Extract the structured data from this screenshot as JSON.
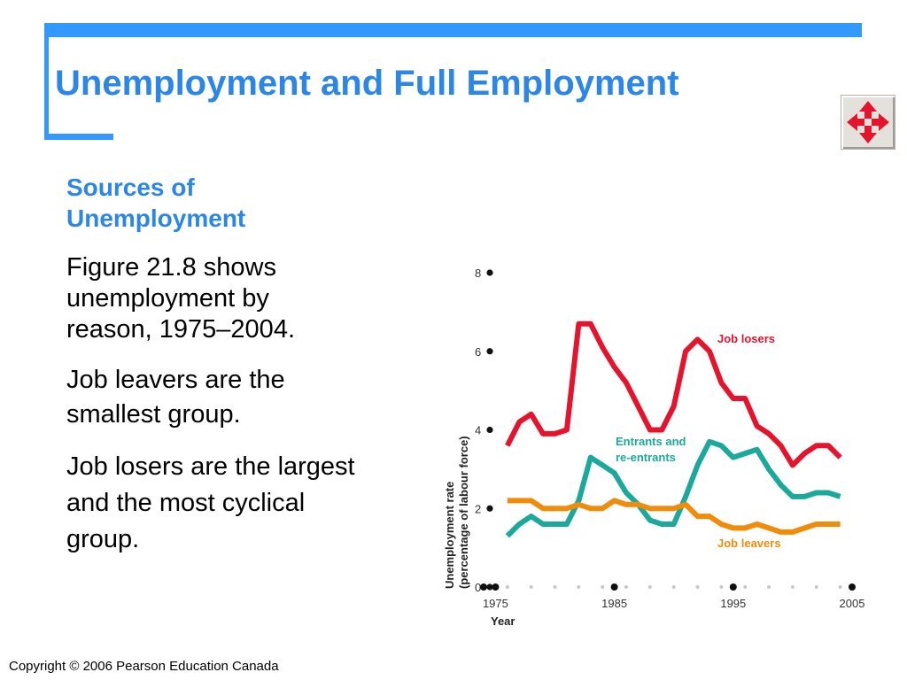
{
  "slide": {
    "title": "Unemployment and Full Employment",
    "subheading": "Sources of Unemployment",
    "paragraphs": [
      "Figure 21.8 shows unemployment by reason, 1975–2004.",
      "Job leavers are the smallest group.",
      "Job losers are the largest and the most cyclical group."
    ],
    "footer": "Copyright © 2006 Pearson Education Canada",
    "nav_icon": "four-way-arrow-icon",
    "colors": {
      "accent": "#3399ff",
      "title": "#2b86e8",
      "nav_arrow": "#e5132b"
    }
  },
  "chart_data": {
    "type": "line",
    "xlabel": "Year",
    "ylabel_line1": "Unemployment rate",
    "ylabel_line2": "(percentage of labour force)",
    "xlim": [
      1974,
      2005
    ],
    "ylim": [
      0,
      8
    ],
    "x_ticks": [
      1975,
      1985,
      1995,
      2005
    ],
    "y_ticks": [
      0,
      2,
      4,
      6,
      8
    ],
    "grid": false,
    "series": [
      {
        "name": "Job losers",
        "label_line1": "Job losers",
        "color": "#e5132b",
        "x": [
          1976,
          1977,
          1978,
          1979,
          1980,
          1981,
          1982,
          1983,
          1984,
          1985,
          1986,
          1987,
          1988,
          1989,
          1990,
          1991,
          1992,
          1993,
          1994,
          1995,
          1996,
          1997,
          1998,
          1999,
          2000,
          2001,
          2002,
          2003,
          2004
        ],
        "values": [
          3.6,
          4.2,
          4.4,
          3.9,
          3.9,
          4.0,
          6.7,
          6.7,
          6.1,
          5.6,
          5.2,
          4.6,
          4.0,
          4.0,
          4.6,
          6.0,
          6.3,
          6.0,
          5.2,
          4.8,
          4.8,
          4.1,
          3.9,
          3.6,
          3.1,
          3.4,
          3.6,
          3.6,
          3.3
        ]
      },
      {
        "name": "Entrants and re-entrants",
        "label_line1": "Entrants and",
        "label_line2": "re-entrants",
        "color": "#1ba99c",
        "x": [
          1976,
          1977,
          1978,
          1979,
          1980,
          1981,
          1982,
          1983,
          1984,
          1985,
          1986,
          1987,
          1988,
          1989,
          1990,
          1991,
          1992,
          1993,
          1994,
          1995,
          1996,
          1997,
          1998,
          1999,
          2000,
          2001,
          2002,
          2003,
          2004
        ],
        "values": [
          1.3,
          1.6,
          1.8,
          1.6,
          1.6,
          1.6,
          2.2,
          3.3,
          3.1,
          2.9,
          2.4,
          2.1,
          1.7,
          1.6,
          1.6,
          2.3,
          3.1,
          3.7,
          3.6,
          3.3,
          3.4,
          3.5,
          3.0,
          2.6,
          2.3,
          2.3,
          2.4,
          2.4,
          2.3
        ]
      },
      {
        "name": "Job leavers",
        "label_line1": "Job leavers",
        "color": "#f08c0a",
        "x": [
          1976,
          1977,
          1978,
          1979,
          1980,
          1981,
          1982,
          1983,
          1984,
          1985,
          1986,
          1987,
          1988,
          1989,
          1990,
          1991,
          1992,
          1993,
          1994,
          1995,
          1996,
          1997,
          1998,
          1999,
          2000,
          2001,
          2002,
          2003,
          2004
        ],
        "values": [
          2.2,
          2.2,
          2.2,
          2.0,
          2.0,
          2.0,
          2.1,
          2.0,
          2.0,
          2.2,
          2.1,
          2.1,
          2.0,
          2.0,
          2.0,
          2.1,
          1.8,
          1.8,
          1.6,
          1.5,
          1.5,
          1.6,
          1.5,
          1.4,
          1.4,
          1.5,
          1.6,
          1.6,
          1.6
        ]
      }
    ]
  }
}
